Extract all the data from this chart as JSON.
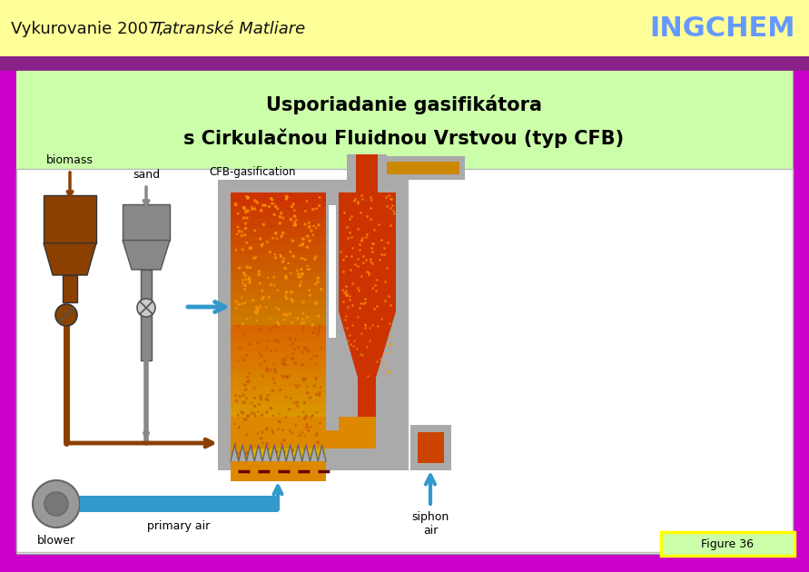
{
  "bg_color": "#CC00CC",
  "header_bg": "#FFFF99",
  "header_left_normal": "Vykurovanie 2007,",
  "header_left_italic": " Tatranské Matliare",
  "header_right": "INGCHEM",
  "header_right_color": "#6699FF",
  "purple_bar_color": "#882288",
  "title_box_bg": "#CCFFAA",
  "title_line1": "Usporiadanie gasifikátora",
  "title_line2": "s Cirkulačnou Fluidnou Vrstvou (typ CFB)",
  "title_color": "#000000",
  "figure_label": "Figure 36",
  "figure_label_bg": "#CCFFAA",
  "figure_label_border": "#FFFF00",
  "content_bg": "#FFFFFF",
  "gray_shell": "#AAAAAA",
  "brown_hopper": "#8B4000",
  "gray_hopper": "#888888",
  "reactor_red": "#CC3300",
  "reactor_orange": "#DD6600",
  "dot_orange": "#FF8800",
  "blue_arrow": "#3399CC",
  "grate_color": "#AAAAAA",
  "plenum_orange": "#DD8800",
  "blower_gray": "#AAAAAA"
}
